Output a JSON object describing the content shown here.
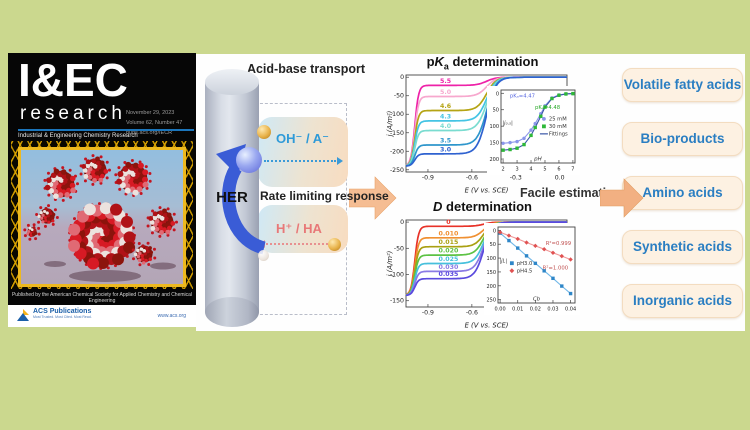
{
  "colors": {
    "background": "#cbd88e",
    "panel": "#ffffff",
    "accent_blue": "#2a7ec2",
    "oh_blue": "#3a9ad8",
    "ha_red": "#e87878",
    "arrow_orange": "#f2b082",
    "cover_gold": "#edb91f",
    "masthead_rule_blue": "#1b75bb"
  },
  "cover": {
    "masthead_title": "I&EC",
    "masthead_sub": "research",
    "journal_full": "Industrial & Engineering Chemistry Research",
    "issue_date": "November 29, 2023",
    "issue_volume": "Volume 62, Number 47",
    "issue_url": "pubs.acs.org/IECR",
    "footer_note": "Published by the American Chemical Society for Applied Chemistry and Chemical Engineering",
    "publisher": "ACS Publications",
    "publisher_tagline": "Most Trusted. Most Cited. Most Read.",
    "publisher_url": "www.acs.org"
  },
  "scheme": {
    "electrode_label": "HER",
    "top_label": "Acid-base transport",
    "oh_label": "OH⁻ / A⁻",
    "middle_label": "Rate limiting response",
    "ha_label": "H⁺ / HA",
    "estimation_label": "Facile estimation"
  },
  "applications": [
    "Volatile fatty acids",
    "Bio-products",
    "Amino acids",
    "Synthetic acids",
    "Inorganic acids"
  ],
  "charts": [
    {
      "title_p": "p",
      "title_k": "K",
      "title_sub": "a",
      "title_rest": " determination"
    },
    {
      "title_p": "",
      "title_k": "D",
      "title_sub": "",
      "title_rest": " determination"
    }
  ],
  "chart_data": [
    {
      "type": "line",
      "title": "pKa determination",
      "xlabel": "E (V vs. SCE)",
      "ylabel": "j (A/m²)",
      "xlim": [
        -1.05,
        0.05
      ],
      "yrange": [
        6,
        -256
      ],
      "xticks": [
        -0.9,
        -0.6,
        -0.3,
        0.0
      ],
      "xtick_labels": [
        "-0.9",
        "-0.6",
        "-0.3",
        "0.0"
      ],
      "yticks": [
        0,
        -50,
        -100,
        -150,
        -200,
        -250
      ],
      "ytick_labels": [
        "0",
        "-50",
        "-100",
        "-150",
        "-200",
        "-250"
      ],
      "half_E": -0.5,
      "half_w": 0.032,
      "dive_E": -0.99,
      "dive_w": 0.013,
      "floor": -240,
      "label_E": -0.78,
      "series": [
        {
          "label": "5.5",
          "plateau": -22,
          "color": "#ee22a8"
        },
        {
          "label": "5.0",
          "plateau": -52,
          "color": "#f7a8ce"
        },
        {
          "label": "4.6",
          "plateau": -90,
          "color": "#b5a414"
        },
        {
          "label": "4.3",
          "plateau": -118,
          "color": "#44c4e4"
        },
        {
          "label": "4.0",
          "plateau": -144,
          "color": "#7adcd0"
        },
        {
          "label": "3.5",
          "plateau": -183,
          "color": "#2e96cc"
        },
        {
          "label": "3.0",
          "plateau": -207,
          "color": "#2f62d0"
        }
      ],
      "inset": {
        "xlabel": "pH",
        "ylabel": "|j₀.₅|",
        "xlim": [
          1.85,
          7.15
        ],
        "yrange": [
          -10,
          212
        ],
        "xticks": [
          2,
          3,
          4,
          5,
          6,
          7
        ],
        "xtick_labels": [
          "2",
          "3",
          "4",
          "5",
          "6",
          "7"
        ],
        "yticks": [
          0,
          50,
          100,
          150,
          200
        ],
        "ytick_labels": [
          "0",
          "50",
          "100",
          "150",
          "200"
        ],
        "series": [
          {
            "name": "25 mM",
            "marker": "circle",
            "color": "#8a96ea",
            "line": "#8a96ea",
            "points": [
              [
                2,
                152
              ],
              [
                2.5,
                150
              ],
              [
                3,
                147
              ],
              [
                3.5,
                137
              ],
              [
                4,
                112
              ],
              [
                4.3,
                92
              ],
              [
                4.7,
                62
              ],
              [
                5,
                38
              ],
              [
                5.5,
                14
              ],
              [
                6,
                5
              ],
              [
                6.5,
                2
              ],
              [
                7,
                1
              ]
            ]
          },
          {
            "name": "30 mM",
            "marker": "square",
            "color": "#2eb838",
            "line": "#3a57a8",
            "points": [
              [
                2,
                173
              ],
              [
                2.5,
                171
              ],
              [
                3,
                167
              ],
              [
                3.5,
                156
              ],
              [
                4,
                128
              ],
              [
                4.3,
                104
              ],
              [
                4.7,
                70
              ],
              [
                5,
                42
              ],
              [
                5.5,
                16
              ],
              [
                6,
                6
              ],
              [
                6.5,
                2
              ],
              [
                7,
                1
              ]
            ]
          }
        ],
        "legend": [
          {
            "label": "25 mM",
            "marker": "circle",
            "color": "#8a96ea"
          },
          {
            "label": "30 mM",
            "marker": "square",
            "color": "#2eb838"
          },
          {
            "label": "Fittings",
            "marker": "line",
            "color": "#3a57a8"
          }
        ],
        "legend_pos": [
          0.58,
          0.42
        ],
        "annotations": [
          {
            "text": "pKₐ=4.47",
            "color": "#5868e0",
            "pos": [
              0.12,
              0.1
            ]
          },
          {
            "text": "pKₐ=4.48",
            "color": "#28a828",
            "pos": [
              0.46,
              0.26
            ]
          }
        ]
      }
    },
    {
      "type": "line",
      "title": "D determination",
      "xlabel": "E (V vs. SCE)",
      "ylabel": "j (A/m²)",
      "xlim": [
        -1.05,
        0.05
      ],
      "yrange": [
        4,
        -162
      ],
      "xticks": [
        -0.9,
        -0.6,
        -0.3,
        0.0
      ],
      "xtick_labels": [
        "-0.9",
        "-0.6",
        "-0.3",
        "0.0"
      ],
      "yticks": [
        0,
        -50,
        -100,
        -150
      ],
      "ytick_labels": [
        "0",
        "-50",
        "-100",
        "-150"
      ],
      "half_E": -0.52,
      "half_w": 0.03,
      "dive_E": -0.99,
      "dive_w": 0.013,
      "floor": -140,
      "label_E": -0.76,
      "series": [
        {
          "label": "0",
          "plateau": -8,
          "color": "#e83228"
        },
        {
          "label": "0.010",
          "plateau": -30,
          "color": "#f09032"
        },
        {
          "label": "0.015",
          "plateau": -47,
          "color": "#aaa012"
        },
        {
          "label": "0.020",
          "plateau": -63,
          "color": "#5cc244"
        },
        {
          "label": "0.025",
          "plateau": -79,
          "color": "#46c0dc"
        },
        {
          "label": "0.030",
          "plateau": -94,
          "color": "#8a7ae4"
        },
        {
          "label": "0.035",
          "plateau": -108,
          "color": "#5a4ade"
        }
      ],
      "inset": {
        "xlabel": "Cb",
        "ylabel": "|jL|",
        "xlim": [
          -0.0012,
          0.0425
        ],
        "yrange": [
          -12,
          262
        ],
        "xticks": [
          0.0,
          0.01,
          0.02,
          0.03,
          0.04
        ],
        "xtick_labels": [
          "0.00",
          "0.01",
          "0.02",
          "0.03",
          "0.04"
        ],
        "yticks": [
          0,
          50,
          100,
          150,
          200,
          250
        ],
        "ytick_labels": [
          "0",
          "50",
          "100",
          "150",
          "200",
          "250"
        ],
        "series": [
          {
            "name": "pH3.0",
            "marker": "square",
            "color": "#2e86c8",
            "line": "#72b8e8",
            "points": [
              [
                0,
                10
              ],
              [
                0.005,
                37
              ],
              [
                0.01,
                64
              ],
              [
                0.015,
                92
              ],
              [
                0.02,
                119
              ],
              [
                0.025,
                146
              ],
              [
                0.03,
                173
              ],
              [
                0.035,
                201
              ],
              [
                0.04,
                228
              ]
            ]
          },
          {
            "name": "pH4.5",
            "marker": "diamond",
            "color": "#e05252",
            "line": "#f09898",
            "points": [
              [
                0,
                7
              ],
              [
                0.005,
                19
              ],
              [
                0.01,
                31
              ],
              [
                0.015,
                44
              ],
              [
                0.02,
                56
              ],
              [
                0.025,
                68
              ],
              [
                0.03,
                81
              ],
              [
                0.035,
                93
              ],
              [
                0.04,
                105
              ]
            ]
          }
        ],
        "legend": [
          {
            "label": "pH3.0",
            "marker": "square",
            "color": "#2e86c8"
          },
          {
            "label": "pH4.5",
            "marker": "diamond",
            "color": "#e05252"
          }
        ],
        "legend_pos": [
          0.18,
          0.5
        ],
        "annotations": [
          {
            "text": "R²=0.999",
            "color": "#c05050",
            "pos": [
              0.62,
              0.24
            ]
          },
          {
            "text": "R²=1.000",
            "color": "#c05050",
            "pos": [
              0.58,
              0.56
            ]
          }
        ]
      }
    }
  ]
}
